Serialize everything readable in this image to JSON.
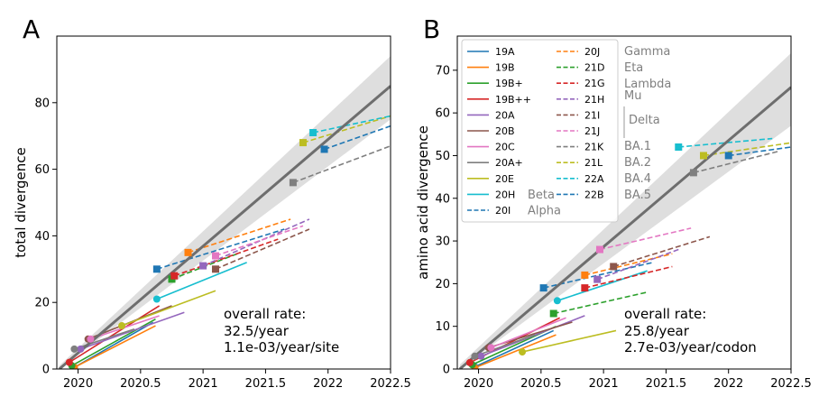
{
  "chart_data": [
    {
      "panel": "A",
      "type": "line",
      "xlabel": "",
      "ylabel": "total divergence",
      "xlim": [
        2019.83,
        2022.5
      ],
      "ylim": [
        0,
        100
      ],
      "xticks": [
        "2020",
        "2020.5",
        "2021",
        "2021.5",
        "2022",
        "2022.5"
      ],
      "yticks": [
        "0",
        "20",
        "40",
        "60",
        "80"
      ],
      "rate_text": [
        "overall rate:",
        "32.5/year",
        "1.1e-03/year/site"
      ],
      "regression": {
        "x": [
          2019.85,
          2022.5
        ],
        "y": [
          0,
          85
        ]
      },
      "band": {
        "lower": [
          0,
          75
        ],
        "upper": [
          1,
          94
        ]
      },
      "series": [
        {
          "name": "19A",
          "style": "solid",
          "color": "#1f77b4",
          "start": [
            2019.97,
            0.5
          ],
          "end": [
            2020.6,
            14
          ]
        },
        {
          "name": "19B",
          "style": "solid",
          "color": "#ff7f0e",
          "start": [
            2019.97,
            0.5
          ],
          "end": [
            2020.62,
            13
          ]
        },
        {
          "name": "19B+",
          "style": "solid",
          "color": "#2ca02c",
          "start": [
            2019.95,
            1
          ],
          "end": [
            2020.62,
            15
          ]
        },
        {
          "name": "19B++",
          "style": "solid",
          "color": "#d62728",
          "start": [
            2019.93,
            2
          ],
          "end": [
            2020.65,
            19
          ]
        },
        {
          "name": "20A",
          "style": "solid",
          "color": "#9467bd",
          "start": [
            2020.02,
            6
          ],
          "end": [
            2020.85,
            17
          ]
        },
        {
          "name": "20B",
          "style": "solid",
          "color": "#8c564b",
          "start": [
            2020.08,
            9
          ],
          "end": [
            2020.75,
            19
          ]
        },
        {
          "name": "20C",
          "style": "solid",
          "color": "#e377c2",
          "start": [
            2020.1,
            9
          ],
          "end": [
            2020.65,
            16
          ]
        },
        {
          "name": "20A+",
          "style": "solid",
          "color": "#7f7f7f",
          "start": [
            2019.97,
            6
          ],
          "end": [
            2020.45,
            12
          ]
        },
        {
          "name": "20E",
          "style": "solid",
          "color": "#bcbd22",
          "start": [
            2020.35,
            13
          ],
          "end": [
            2021.1,
            23.5
          ]
        },
        {
          "name": "20H",
          "style": "solid",
          "color": "#17becf",
          "start": [
            2020.63,
            21
          ],
          "end": [
            2021.35,
            32
          ]
        },
        {
          "name": "20I",
          "style": "dashed",
          "color": "#1f77b4",
          "start": [
            2020.63,
            30
          ],
          "end": [
            2021.65,
            42
          ]
        },
        {
          "name": "20J",
          "style": "dashed",
          "color": "#ff7f0e",
          "start": [
            2020.88,
            35
          ],
          "end": [
            2021.7,
            45
          ]
        },
        {
          "name": "21D",
          "style": "dashed",
          "color": "#2ca02c",
          "start": [
            2020.75,
            27
          ],
          "end": [
            2021.3,
            35
          ]
        },
        {
          "name": "21G",
          "style": "dashed",
          "color": "#d62728",
          "start": [
            2020.77,
            28
          ],
          "end": [
            2021.6,
            39
          ]
        },
        {
          "name": "21H",
          "style": "dashed",
          "color": "#9467bd",
          "start": [
            2021.0,
            31
          ],
          "end": [
            2021.85,
            45
          ]
        },
        {
          "name": "21I",
          "style": "dashed",
          "color": "#8c564b",
          "start": [
            2021.1,
            30
          ],
          "end": [
            2021.85,
            42
          ]
        },
        {
          "name": "21J",
          "style": "dashed",
          "color": "#e377c2",
          "start": [
            2021.1,
            34
          ],
          "end": [
            2021.8,
            43
          ]
        },
        {
          "name": "21K",
          "style": "dashed",
          "color": "#7f7f7f",
          "start": [
            2021.72,
            56
          ],
          "end": [
            2022.5,
            67
          ]
        },
        {
          "name": "21L",
          "style": "dashed",
          "color": "#bcbd22",
          "start": [
            2021.8,
            68
          ],
          "end": [
            2022.5,
            76
          ]
        },
        {
          "name": "22A",
          "style": "dashed",
          "color": "#17becf",
          "start": [
            2021.88,
            71
          ],
          "end": [
            2022.5,
            76
          ]
        },
        {
          "name": "22B",
          "style": "dashed",
          "color": "#1f77b4",
          "start": [
            2021.97,
            66
          ],
          "end": [
            2022.5,
            73
          ]
        }
      ]
    },
    {
      "panel": "B",
      "type": "line",
      "xlabel": "",
      "ylabel": "amino acid divergence",
      "xlim": [
        2019.83,
        2022.5
      ],
      "ylim": [
        0,
        78
      ],
      "xticks": [
        "2020",
        "2020.5",
        "2021",
        "2021.5",
        "2022",
        "2022.5"
      ],
      "yticks": [
        "0",
        "10",
        "20",
        "30",
        "40",
        "50",
        "60",
        "70"
      ],
      "rate_text": [
        "overall rate:",
        "25.8/year",
        "2.7e-03/year/codon"
      ],
      "regression": {
        "x": [
          2019.85,
          2022.5
        ],
        "y": [
          0,
          66
        ]
      },
      "band": {
        "lower": [
          0,
          57
        ],
        "upper": [
          1,
          74
        ]
      },
      "series": [
        {
          "name": "19A",
          "style": "solid",
          "color": "#1f77b4",
          "start": [
            2019.97,
            0.5
          ],
          "end": [
            2020.6,
            9
          ]
        },
        {
          "name": "19B",
          "style": "solid",
          "color": "#ff7f0e",
          "start": [
            2019.97,
            0.3
          ],
          "end": [
            2020.62,
            8
          ]
        },
        {
          "name": "19B+",
          "style": "solid",
          "color": "#2ca02c",
          "start": [
            2019.95,
            1
          ],
          "end": [
            2020.62,
            10
          ]
        },
        {
          "name": "19B++",
          "style": "solid",
          "color": "#d62728",
          "start": [
            2019.93,
            1.5
          ],
          "end": [
            2020.65,
            12
          ]
        },
        {
          "name": "20A",
          "style": "solid",
          "color": "#9467bd",
          "start": [
            2020.02,
            3
          ],
          "end": [
            2020.85,
            12.5
          ]
        },
        {
          "name": "20B",
          "style": "solid",
          "color": "#8c564b",
          "start": [
            2020.08,
            5
          ],
          "end": [
            2020.75,
            11
          ]
        },
        {
          "name": "20C",
          "style": "solid",
          "color": "#e377c2",
          "start": [
            2020.1,
            5
          ],
          "end": [
            2020.7,
            12
          ]
        },
        {
          "name": "20A+",
          "style": "solid",
          "color": "#7f7f7f",
          "start": [
            2019.97,
            3
          ],
          "end": [
            2020.45,
            8
          ]
        },
        {
          "name": "20E",
          "style": "solid",
          "color": "#bcbd22",
          "start": [
            2020.35,
            4
          ],
          "end": [
            2021.1,
            9
          ]
        },
        {
          "name": "20H",
          "style": "solid",
          "color": "#17becf",
          "start": [
            2020.63,
            16
          ],
          "end": [
            2021.35,
            23
          ]
        },
        {
          "name": "20I",
          "style": "dashed",
          "color": "#1f77b4",
          "start": [
            2020.52,
            19
          ],
          "end": [
            2021.4,
            25
          ]
        },
        {
          "name": "20J",
          "style": "dashed",
          "color": "#ff7f0e",
          "start": [
            2020.85,
            22
          ],
          "end": [
            2021.55,
            27
          ]
        },
        {
          "name": "21D",
          "style": "dashed",
          "color": "#2ca02c",
          "start": [
            2020.6,
            13
          ],
          "end": [
            2021.35,
            18
          ]
        },
        {
          "name": "21G",
          "style": "dashed",
          "color": "#d62728",
          "start": [
            2020.85,
            19
          ],
          "end": [
            2021.55,
            24
          ]
        },
        {
          "name": "21H",
          "style": "dashed",
          "color": "#9467bd",
          "start": [
            2020.95,
            21
          ],
          "end": [
            2021.6,
            28
          ]
        },
        {
          "name": "21I",
          "style": "dashed",
          "color": "#8c564b",
          "start": [
            2021.08,
            24
          ],
          "end": [
            2021.85,
            31
          ]
        },
        {
          "name": "21J",
          "style": "dashed",
          "color": "#e377c2",
          "start": [
            2020.97,
            28
          ],
          "end": [
            2021.7,
            33
          ]
        },
        {
          "name": "21K",
          "style": "dashed",
          "color": "#7f7f7f",
          "start": [
            2021.72,
            46
          ],
          "end": [
            2022.4,
            51
          ]
        },
        {
          "name": "21L",
          "style": "dashed",
          "color": "#bcbd22",
          "start": [
            2021.8,
            50
          ],
          "end": [
            2022.5,
            53
          ]
        },
        {
          "name": "22A",
          "style": "dashed",
          "color": "#17becf",
          "start": [
            2021.6,
            52
          ],
          "end": [
            2022.35,
            54
          ]
        },
        {
          "name": "22B",
          "style": "dashed",
          "color": "#1f77b4",
          "start": [
            2022.0,
            50
          ],
          "end": [
            2022.5,
            52
          ]
        }
      ],
      "legend_placement": "top-left",
      "legend": {
        "col1": [
          {
            "name": "19A",
            "color": "#1f77b4",
            "style": "solid"
          },
          {
            "name": "19B",
            "color": "#ff7f0e",
            "style": "solid"
          },
          {
            "name": "19B+",
            "color": "#2ca02c",
            "style": "solid"
          },
          {
            "name": "19B++",
            "color": "#d62728",
            "style": "solid"
          },
          {
            "name": "20A",
            "color": "#9467bd",
            "style": "solid"
          },
          {
            "name": "20B",
            "color": "#8c564b",
            "style": "solid"
          },
          {
            "name": "20C",
            "color": "#e377c2",
            "style": "solid"
          },
          {
            "name": "20A+",
            "color": "#7f7f7f",
            "style": "solid"
          },
          {
            "name": "20E",
            "color": "#bcbd22",
            "style": "solid"
          },
          {
            "name": "20H",
            "color": "#17becf",
            "style": "solid"
          },
          {
            "name": "20I",
            "color": "#1f77b4",
            "style": "dashed"
          }
        ],
        "col2": [
          {
            "name": "20J",
            "color": "#ff7f0e",
            "style": "dashed"
          },
          {
            "name": "21D",
            "color": "#2ca02c",
            "style": "dashed"
          },
          {
            "name": "21G",
            "color": "#d62728",
            "style": "dashed"
          },
          {
            "name": "21H",
            "color": "#9467bd",
            "style": "dashed"
          },
          {
            "name": "21I",
            "color": "#8c564b",
            "style": "dashed"
          },
          {
            "name": "21J",
            "color": "#e377c2",
            "style": "dashed"
          },
          {
            "name": "21K",
            "color": "#7f7f7f",
            "style": "dashed"
          },
          {
            "name": "21L",
            "color": "#bcbd22",
            "style": "dashed"
          },
          {
            "name": "22A",
            "color": "#17becf",
            "style": "dashed"
          },
          {
            "name": "22B",
            "color": "#1f77b4",
            "style": "dashed"
          }
        ],
        "variant_names_col1": {
          "20H": "Beta",
          "20I": "Alpha"
        },
        "variant_names_col3": [
          "Gamma",
          "Eta",
          "Lambda",
          "Mu",
          "Delta",
          "BA.1",
          "BA.2",
          "BA.4",
          "BA.5"
        ]
      }
    }
  ],
  "colors": {
    "regression": "#6e6e6e",
    "band": "#dedede",
    "variant_label": "#7f7f7f"
  }
}
